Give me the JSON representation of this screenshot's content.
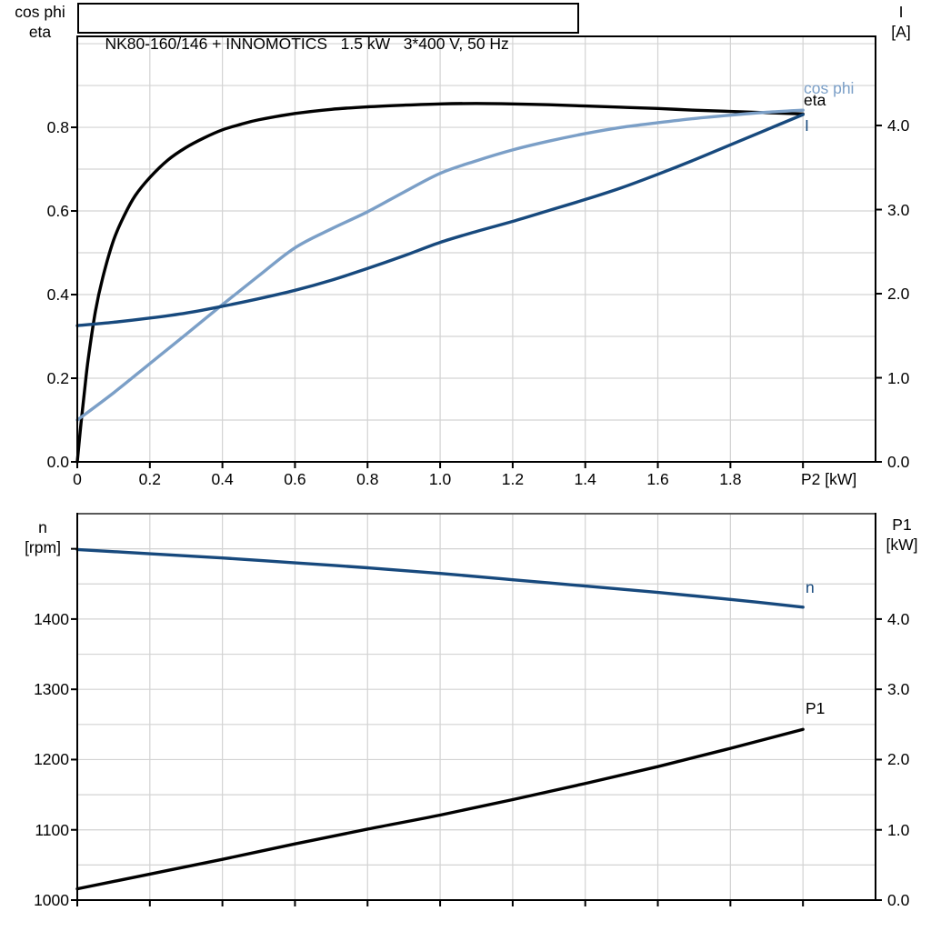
{
  "colors": {
    "black": "#000000",
    "dark_blue": "#17497d",
    "light_blue": "#7b9fc7",
    "grid": "#d3d3d3",
    "border": "#000000",
    "bottom_top_border": "#595959",
    "background": "#ffffff"
  },
  "chart_data": [
    {
      "type": "line",
      "title": "NK80-160/146 + INNOMOTICS   1.5 kW   3*400 V, 50 Hz",
      "x_axis": {
        "title": "P2 [kW]",
        "min": 0,
        "max": 2.2,
        "grid_step": 0.2,
        "ticks": [
          {
            "v": 0,
            "label": "0"
          },
          {
            "v": 0.2,
            "label": "0.2"
          },
          {
            "v": 0.4,
            "label": "0.4"
          },
          {
            "v": 0.6,
            "label": "0.6"
          },
          {
            "v": 0.8,
            "label": "0.8"
          },
          {
            "v": 1.0,
            "label": "1.0"
          },
          {
            "v": 1.2,
            "label": "1.2"
          },
          {
            "v": 1.4,
            "label": "1.4"
          },
          {
            "v": 1.6,
            "label": "1.6"
          },
          {
            "v": 1.8,
            "label": "1.8"
          },
          {
            "v": 2.0,
            "label": ""
          }
        ]
      },
      "left_axis": {
        "title": [
          "cos phi",
          "eta"
        ],
        "min": 0,
        "max": 1.0175,
        "grid_step": 0.1,
        "ticks": [
          {
            "v": 0.0,
            "label": "0.0"
          },
          {
            "v": 0.2,
            "label": "0.2"
          },
          {
            "v": 0.4,
            "label": "0.4"
          },
          {
            "v": 0.6,
            "label": "0.6"
          },
          {
            "v": 0.8,
            "label": "0.8"
          }
        ]
      },
      "right_axis": {
        "title": [
          "I",
          "[A]"
        ],
        "min": 0,
        "max": 5.06,
        "ticks": [
          {
            "v": 0.0,
            "label": "0.0"
          },
          {
            "v": 1.0,
            "label": "1.0"
          },
          {
            "v": 2.0,
            "label": "2.0"
          },
          {
            "v": 3.0,
            "label": "3.0"
          },
          {
            "v": 4.0,
            "label": "4.0"
          }
        ]
      },
      "series": [
        {
          "name": "eta",
          "axis": "left",
          "color": "#000000",
          "points": [
            [
              0,
              0
            ],
            [
              0.01,
              0.09
            ],
            [
              0.02,
              0.17
            ],
            [
              0.03,
              0.245
            ],
            [
              0.05,
              0.36
            ],
            [
              0.07,
              0.44
            ],
            [
              0.1,
              0.53
            ],
            [
              0.13,
              0.59
            ],
            [
              0.16,
              0.637
            ],
            [
              0.2,
              0.68
            ],
            [
              0.25,
              0.722
            ],
            [
              0.3,
              0.752
            ],
            [
              0.35,
              0.775
            ],
            [
              0.4,
              0.794
            ],
            [
              0.45,
              0.807
            ],
            [
              0.5,
              0.818
            ],
            [
              0.6,
              0.833
            ],
            [
              0.7,
              0.843
            ],
            [
              0.8,
              0.849
            ],
            [
              0.9,
              0.853
            ],
            [
              1.0,
              0.856
            ],
            [
              1.1,
              0.857
            ],
            [
              1.2,
              0.856
            ],
            [
              1.3,
              0.854
            ],
            [
              1.4,
              0.851
            ],
            [
              1.5,
              0.848
            ],
            [
              1.6,
              0.845
            ],
            [
              1.7,
              0.841
            ],
            [
              1.8,
              0.838
            ],
            [
              1.9,
              0.835
            ],
            [
              2.0,
              0.832
            ]
          ]
        },
        {
          "name": "cos phi",
          "axis": "left",
          "color": "#7b9fc7",
          "points": [
            [
              0,
              0.1
            ],
            [
              0.1,
              0.165
            ],
            [
              0.2,
              0.235
            ],
            [
              0.3,
              0.305
            ],
            [
              0.4,
              0.376
            ],
            [
              0.5,
              0.445
            ],
            [
              0.6,
              0.512
            ],
            [
              0.7,
              0.557
            ],
            [
              0.8,
              0.598
            ],
            [
              0.9,
              0.645
            ],
            [
              1.0,
              0.69
            ],
            [
              1.1,
              0.72
            ],
            [
              1.2,
              0.746
            ],
            [
              1.3,
              0.767
            ],
            [
              1.4,
              0.785
            ],
            [
              1.5,
              0.8
            ],
            [
              1.6,
              0.811
            ],
            [
              1.7,
              0.821
            ],
            [
              1.8,
              0.829
            ],
            [
              1.9,
              0.836
            ],
            [
              2.0,
              0.841
            ]
          ]
        },
        {
          "name": "I",
          "axis": "right",
          "color": "#17497d",
          "points": [
            [
              0,
              1.62
            ],
            [
              0.1,
              1.66
            ],
            [
              0.2,
              1.71
            ],
            [
              0.3,
              1.77
            ],
            [
              0.4,
              1.85
            ],
            [
              0.5,
              1.94
            ],
            [
              0.6,
              2.04
            ],
            [
              0.7,
              2.16
            ],
            [
              0.8,
              2.3
            ],
            [
              0.9,
              2.45
            ],
            [
              1.0,
              2.61
            ],
            [
              1.1,
              2.74
            ],
            [
              1.2,
              2.86
            ],
            [
              1.3,
              2.99
            ],
            [
              1.4,
              3.12
            ],
            [
              1.5,
              3.26
            ],
            [
              1.6,
              3.42
            ],
            [
              1.7,
              3.59
            ],
            [
              1.8,
              3.77
            ],
            [
              1.9,
              3.95
            ],
            [
              2.0,
              4.13
            ]
          ]
        }
      ]
    },
    {
      "type": "line",
      "title": "",
      "x_axis": {
        "title": "",
        "min": 0,
        "max": 2.2,
        "grid_step": 0.2,
        "ticks": [
          {
            "v": 0,
            "label": ""
          },
          {
            "v": 0.2,
            "label": ""
          },
          {
            "v": 0.4,
            "label": ""
          },
          {
            "v": 0.6,
            "label": ""
          },
          {
            "v": 0.8,
            "label": ""
          },
          {
            "v": 1.0,
            "label": ""
          },
          {
            "v": 1.2,
            "label": ""
          },
          {
            "v": 1.4,
            "label": ""
          },
          {
            "v": 1.6,
            "label": ""
          },
          {
            "v": 1.8,
            "label": ""
          },
          {
            "v": 2.0,
            "label": ""
          }
        ]
      },
      "left_axis": {
        "title": [
          "n",
          "[rpm]"
        ],
        "min": 1000,
        "max": 1550,
        "grid_step": 50,
        "ticks": [
          {
            "v": 1000,
            "label": "1000"
          },
          {
            "v": 1100,
            "label": "1100"
          },
          {
            "v": 1200,
            "label": "1200"
          },
          {
            "v": 1300,
            "label": "1300"
          },
          {
            "v": 1400,
            "label": "1400"
          },
          {
            "v": 1500,
            "label": ""
          }
        ]
      },
      "right_axis": {
        "title": [
          "P1",
          "[kW]"
        ],
        "min": 0,
        "max": 5.5,
        "ticks": [
          {
            "v": 0.0,
            "label": "0.0"
          },
          {
            "v": 1.0,
            "label": "1.0"
          },
          {
            "v": 2.0,
            "label": "2.0"
          },
          {
            "v": 3.0,
            "label": "3.0"
          },
          {
            "v": 4.0,
            "label": "4.0"
          }
        ]
      },
      "series": [
        {
          "name": "n",
          "axis": "left",
          "color": "#17497d",
          "points": [
            [
              0,
              1499
            ],
            [
              0.2,
              1493
            ],
            [
              0.4,
              1487
            ],
            [
              0.6,
              1480
            ],
            [
              0.8,
              1473
            ],
            [
              1.0,
              1465
            ],
            [
              1.2,
              1456
            ],
            [
              1.4,
              1447
            ],
            [
              1.6,
              1438
            ],
            [
              1.8,
              1428
            ],
            [
              2.0,
              1417
            ]
          ]
        },
        {
          "name": "P1",
          "axis": "right",
          "color": "#000000",
          "points": [
            [
              0,
              0.16
            ],
            [
              0.2,
              0.37
            ],
            [
              0.4,
              0.58
            ],
            [
              0.6,
              0.8
            ],
            [
              0.8,
              1.01
            ],
            [
              1.0,
              1.21
            ],
            [
              1.2,
              1.43
            ],
            [
              1.4,
              1.66
            ],
            [
              1.6,
              1.9
            ],
            [
              1.8,
              2.16
            ],
            [
              2.0,
              2.43
            ]
          ]
        }
      ]
    }
  ]
}
